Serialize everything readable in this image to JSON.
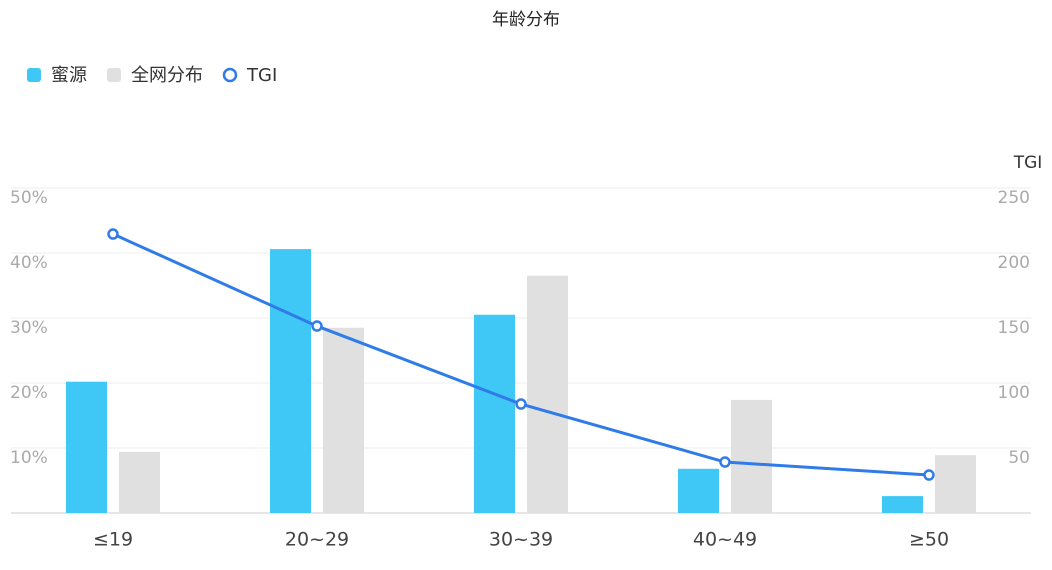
{
  "chart_data": {
    "type": "bar-line",
    "title": "年龄分布",
    "categories": [
      "≤19",
      "20~29",
      "30~39",
      "40~49",
      "≥50"
    ],
    "series": [
      {
        "name": "蜜源",
        "type": "bar",
        "color": "#3fc8f5",
        "values": [
          20.2,
          40.6,
          30.5,
          6.8,
          2.6
        ]
      },
      {
        "name": "全网分布",
        "type": "bar",
        "color": "#e0e0e0",
        "values": [
          9.4,
          28.5,
          36.5,
          17.4,
          8.9
        ]
      },
      {
        "name": "TGI",
        "type": "line",
        "axis": "y2",
        "color": "#2f7be8",
        "values": [
          214.6,
          143.8,
          83.8,
          39.2,
          29.2
        ]
      }
    ],
    "ylim": [
      0,
      50
    ],
    "yticks": [
      {
        "value": 10,
        "label": "10%"
      },
      {
        "value": 20,
        "label": "20%"
      },
      {
        "value": 30,
        "label": "30%"
      },
      {
        "value": 40,
        "label": "40%"
      },
      {
        "value": 50,
        "label": "50%"
      }
    ],
    "y2label": "TGI",
    "y2lim": [
      0,
      250
    ],
    "y2ticks": [
      50,
      100,
      150,
      200,
      250
    ],
    "grid": true
  }
}
